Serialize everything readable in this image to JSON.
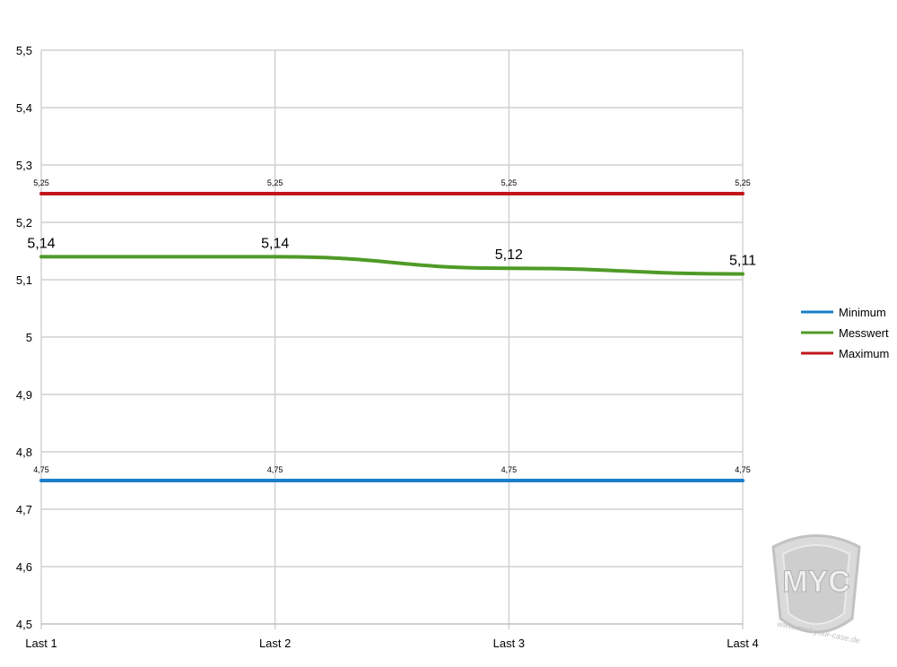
{
  "chart_data": {
    "type": "line",
    "categories": [
      "Last 1",
      "Last 2",
      "Last 3",
      "Last 4"
    ],
    "series": [
      {
        "name": "Minimum",
        "values": [
          4.75,
          4.75,
          4.75,
          4.75
        ],
        "labels": [
          "4,75",
          "4,75",
          "4,75",
          "4,75"
        ],
        "color": "#1a7fc8",
        "label_size": "small"
      },
      {
        "name": "Messwert",
        "values": [
          5.14,
          5.14,
          5.12,
          5.11
        ],
        "labels": [
          "5,14",
          "5,14",
          "5,12",
          "5,11"
        ],
        "color": "#4f9a27",
        "label_size": "large"
      },
      {
        "name": "Maximum",
        "values": [
          5.25,
          5.25,
          5.25,
          5.25
        ],
        "labels": [
          "5,25",
          "5,25",
          "5,25",
          "5,25"
        ],
        "color": "#c2161c",
        "label_size": "small"
      }
    ],
    "ylim": [
      4.5,
      5.5
    ],
    "ytick_values": [
      4.5,
      4.6,
      4.7,
      4.8,
      4.9,
      5.0,
      5.1,
      5.2,
      5.3,
      5.4,
      5.5
    ],
    "ytick_labels": [
      "4,5",
      "4,6",
      "4,7",
      "4,8",
      "4,9",
      "5",
      "5,1",
      "5,2",
      "5,3",
      "5,4",
      "5,5"
    ],
    "grid": true,
    "legend": "right",
    "title": "",
    "xlabel": "",
    "ylabel": ""
  },
  "watermark": {
    "logo_text": "MYC",
    "url_text": "www.mod-your-case.de"
  }
}
